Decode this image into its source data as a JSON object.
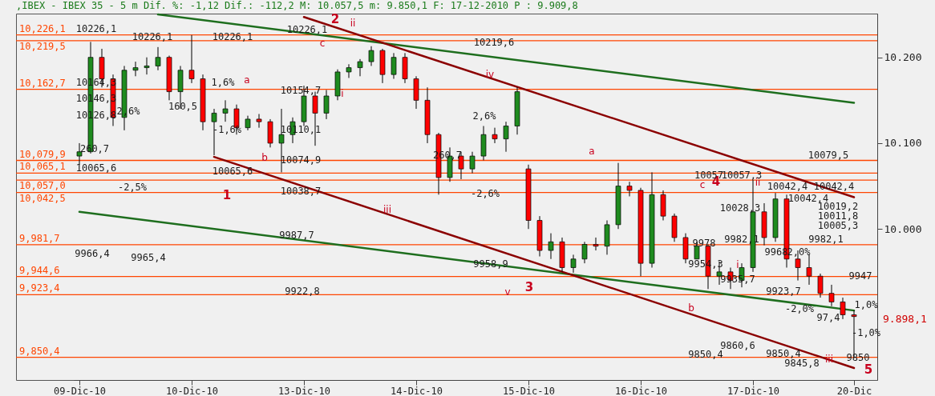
{
  "chart_data": {
    "type": "candlestick",
    "title": ",IBEX - IBEX 35 -  5 m Dif. %: -1,12 Dif.: -112,2 M: 10.057,5 m: 9.850,1 F: 17-12-2010 P : 9.909,8",
    "categories": [
      "09-Dic-10",
      null,
      null,
      null,
      null,
      null,
      null,
      null,
      null,
      null,
      "10-Dic-10",
      null,
      null,
      null,
      null,
      null,
      null,
      null,
      null,
      null,
      "13-Dic-10",
      null,
      null,
      null,
      null,
      null,
      null,
      null,
      null,
      null,
      "14-Dic-10",
      null,
      null,
      null,
      null,
      null,
      null,
      null,
      null,
      null,
      "15-Dic-10",
      null,
      null,
      null,
      null,
      null,
      null,
      null,
      null,
      null,
      "16-Dic-10",
      null,
      null,
      null,
      null,
      null,
      null,
      null,
      null,
      null,
      "17-Dic-10",
      null,
      null,
      null,
      null,
      null,
      null,
      null,
      null,
      "20-Dic"
    ],
    "ohlc": [
      [
        10085,
        10100,
        10075,
        10090
      ],
      [
        10090,
        10218,
        10088,
        10200
      ],
      [
        10200,
        10210,
        10165,
        10175
      ],
      [
        10175,
        10180,
        10120,
        10130
      ],
      [
        10130,
        10190,
        10115,
        10185
      ],
      [
        10185,
        10195,
        10178,
        10188
      ],
      [
        10188,
        10200,
        10180,
        10190
      ],
      [
        10190,
        10212,
        10185,
        10200
      ],
      [
        10200,
        10202,
        10150,
        10160
      ],
      [
        10160,
        10190,
        10140,
        10185
      ],
      [
        10185,
        10226,
        10170,
        10175
      ],
      [
        10175,
        10180,
        10115,
        10125
      ],
      [
        10125,
        10140,
        10086,
        10135
      ],
      [
        10135,
        10150,
        10125,
        10140
      ],
      [
        10140,
        10145,
        10110,
        10118
      ],
      [
        10118,
        10132,
        10115,
        10128
      ],
      [
        10128,
        10134,
        10118,
        10125
      ],
      [
        10125,
        10128,
        10095,
        10100
      ],
      [
        10100,
        10140,
        10066,
        10110
      ],
      [
        10110,
        10130,
        10100,
        10125
      ],
      [
        10125,
        10167,
        10120,
        10155
      ],
      [
        10155,
        10160,
        10097,
        10135
      ],
      [
        10135,
        10162,
        10128,
        10155
      ],
      [
        10155,
        10186,
        10150,
        10183
      ],
      [
        10183,
        10192,
        10176,
        10188
      ],
      [
        10188,
        10198,
        10178,
        10195
      ],
      [
        10195,
        10213,
        10190,
        10208
      ],
      [
        10208,
        10210,
        10170,
        10180
      ],
      [
        10180,
        10205,
        10175,
        10200
      ],
      [
        10200,
        10205,
        10170,
        10175
      ],
      [
        10175,
        10178,
        10140,
        10150
      ],
      [
        10150,
        10165,
        10100,
        10110
      ],
      [
        10110,
        10112,
        10040,
        10060
      ],
      [
        10060,
        10095,
        10055,
        10085
      ],
      [
        10085,
        10090,
        10058,
        10070
      ],
      [
        10070,
        10090,
        10065,
        10085
      ],
      [
        10085,
        10120,
        10080,
        10110
      ],
      [
        10110,
        10118,
        10100,
        10105
      ],
      [
        10105,
        10125,
        10090,
        10120
      ],
      [
        10120,
        10165,
        10110,
        10160
      ],
      [
        10070,
        10075,
        10000,
        10010
      ],
      [
        10010,
        10015,
        9968,
        9975
      ],
      [
        9975,
        9995,
        9965,
        9985
      ],
      [
        9985,
        9990,
        9950,
        9955
      ],
      [
        9955,
        9970,
        9949,
        9965
      ],
      [
        9965,
        9985,
        9960,
        9982
      ],
      [
        9982,
        9990,
        9975,
        9980
      ],
      [
        9980,
        10010,
        9970,
        10005
      ],
      [
        10005,
        10077,
        10000,
        10050
      ],
      [
        10050,
        10055,
        10038,
        10045
      ],
      [
        10045,
        10048,
        9945,
        9960
      ],
      [
        9960,
        10066,
        9955,
        10040
      ],
      [
        10040,
        10045,
        10010,
        10015
      ],
      [
        10015,
        10018,
        9985,
        9990
      ],
      [
        9990,
        9995,
        9960,
        9965
      ],
      [
        9965,
        9985,
        9965,
        9980
      ],
      [
        9980,
        9982,
        9930,
        9945
      ],
      [
        9945,
        9962,
        9935,
        9950
      ],
      [
        9950,
        9955,
        9930,
        9940
      ],
      [
        9940,
        9960,
        9932,
        9955
      ],
      [
        9955,
        10057,
        9950,
        10020
      ],
      [
        10020,
        10030,
        9981,
        9990
      ],
      [
        9990,
        10042,
        9985,
        10035
      ],
      [
        10035,
        10040,
        9955,
        9965
      ],
      [
        9965,
        9975,
        9940,
        9955
      ],
      [
        9955,
        9970,
        9935,
        9945
      ],
      [
        9945,
        9948,
        9920,
        9925
      ],
      [
        9925,
        9935,
        9910,
        9915
      ],
      [
        9915,
        9920,
        9895,
        9900
      ],
      [
        9900,
        9905,
        9850,
        9898
      ]
    ],
    "ylim": [
      9824,
      10251
    ],
    "yticks": [
      {
        "value": 10000,
        "label": "10.000"
      },
      {
        "value": 10100,
        "label": "10.100"
      },
      {
        "value": 10200,
        "label": "10.200"
      }
    ],
    "ref_lines": [
      {
        "axis": "y",
        "value": 10226.1,
        "label": "10,226,1",
        "color": "#ff4500"
      },
      {
        "axis": "y",
        "value": 10219.5,
        "label": "10,219,5",
        "color": "#ff4500"
      },
      {
        "axis": "y",
        "value": 10162.7,
        "label": "10,162,7",
        "color": "#ff4500"
      },
      {
        "axis": "y",
        "value": 10079.9,
        "label": "10,079,9",
        "color": "#ff4500"
      },
      {
        "axis": "y",
        "value": 10065.1,
        "label": "10,065,1",
        "color": "#ff4500"
      },
      {
        "axis": "y",
        "value": 10057.0,
        "label": "10,057,0",
        "color": "#ff4500"
      },
      {
        "axis": "y",
        "value": 10042.5,
        "label": "10,042,5",
        "color": "#ff4500"
      },
      {
        "axis": "y",
        "value": 9981.7,
        "label": "9,981,7",
        "color": "#ff4500"
      },
      {
        "axis": "y",
        "value": 9944.6,
        "label": "9,944,6",
        "color": "#ff4500"
      },
      {
        "axis": "y",
        "value": 9923.4,
        "label": "9,923,4",
        "color": "#ff4500"
      },
      {
        "axis": "y",
        "value": 9850.4,
        "label": "9,850,4",
        "color": "#ff4500"
      }
    ],
    "series": [
      {
        "type": "line",
        "color": "#1e6e1e",
        "values": [
          null,
          null,
          null,
          null,
          null,
          null,
          null,
          10250,
          null,
          null,
          null,
          null,
          null,
          null,
          null,
          null,
          null,
          null,
          null,
          null,
          null,
          null,
          null,
          null,
          null,
          null,
          null,
          null,
          null,
          null,
          null,
          null,
          null,
          null,
          null,
          null,
          null,
          null,
          null,
          null,
          null,
          null,
          null,
          null,
          null,
          null,
          null,
          null,
          null,
          null,
          null,
          null,
          null,
          null,
          null,
          null,
          null,
          null,
          null,
          null,
          null,
          null,
          null,
          null,
          null,
          null,
          null,
          null,
          null,
          10147
        ]
      },
      {
        "type": "line",
        "color": "#1e6e1e",
        "values": [
          10020,
          null,
          null,
          null,
          null,
          null,
          null,
          null,
          null,
          null,
          null,
          null,
          null,
          null,
          null,
          null,
          null,
          null,
          null,
          null,
          null,
          null,
          null,
          null,
          null,
          null,
          null,
          null,
          null,
          null,
          null,
          null,
          null,
          null,
          null,
          null,
          null,
          null,
          null,
          null,
          null,
          null,
          null,
          null,
          null,
          null,
          null,
          null,
          null,
          null,
          null,
          null,
          null,
          null,
          null,
          null,
          null,
          null,
          null,
          null,
          null,
          null,
          null,
          null,
          null,
          null,
          null,
          null,
          null,
          9905
        ]
      },
      {
        "type": "line",
        "color": "#8b0000",
        "values": [
          null,
          null,
          null,
          null,
          null,
          null,
          null,
          null,
          null,
          null,
          null,
          null,
          null,
          null,
          null,
          null,
          null,
          null,
          null,
          null,
          10247,
          null,
          null,
          null,
          null,
          null,
          null,
          null,
          null,
          null,
          null,
          null,
          null,
          null,
          null,
          null,
          null,
          null,
          null,
          null,
          null,
          null,
          null,
          null,
          null,
          null,
          null,
          null,
          null,
          null,
          null,
          null,
          null,
          null,
          null,
          null,
          null,
          null,
          null,
          null,
          null,
          null,
          null,
          null,
          null,
          null,
          null,
          null,
          null,
          10037
        ]
      },
      {
        "type": "line",
        "color": "#8b0000",
        "values": [
          null,
          null,
          null,
          null,
          null,
          null,
          null,
          null,
          null,
          null,
          null,
          null,
          10084,
          null,
          null,
          null,
          null,
          null,
          null,
          null,
          null,
          null,
          null,
          null,
          null,
          null,
          null,
          null,
          null,
          null,
          null,
          null,
          null,
          null,
          null,
          null,
          null,
          null,
          null,
          null,
          null,
          null,
          null,
          null,
          null,
          null,
          null,
          null,
          null,
          null,
          null,
          null,
          null,
          null,
          null,
          null,
          null,
          null,
          null,
          null,
          null,
          null,
          null,
          null,
          null,
          null,
          null,
          null,
          null,
          9838
        ]
      }
    ],
    "annotations": [
      "1",
      "2",
      "3",
      "4",
      "5",
      "ii",
      "a",
      "b",
      "c",
      "i",
      "iii",
      "iv",
      "v",
      "a",
      "b",
      "c",
      "i",
      "ii",
      "iii",
      "10226,1",
      "10164,3",
      "10146,3",
      "10126,8",
      "260,7",
      "10065,6",
      "10226,1",
      "2,6%",
      "-2,5%",
      "9966,4",
      "9965,4",
      "10226,1",
      "1,6%",
      "160,5",
      "-1,6%",
      "10065,6",
      "10226,1",
      "10154,7",
      "10110,1",
      "10074,9",
      "10038,7",
      "9987,7",
      "9922,8",
      "10219,6",
      "2,6%",
      "260,7",
      "-2,6%",
      "9958,9",
      "10079,5",
      "10057",
      "10057,3",
      "10042,4",
      "10042,4",
      "10042,4",
      "10028,3",
      "10019,2",
      "10011,8",
      "10005,3",
      "9982,1",
      "9978",
      "9982,1",
      "9968",
      "2,0%",
      "9954,3",
      "9935,7",
      "9923,7",
      "-2,0%",
      "1,0%",
      "-1,0%",
      "97,4",
      "9947",
      "9850",
      "9860,6",
      "9850,4",
      "9850,4",
      "9845,8",
      "9.898,1"
    ]
  }
}
